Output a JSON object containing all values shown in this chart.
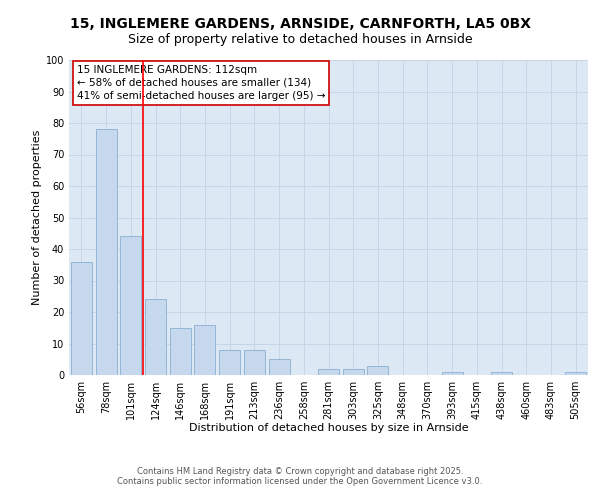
{
  "title_line1": "15, INGLEMERE GARDENS, ARNSIDE, CARNFORTH, LA5 0BX",
  "title_line2": "Size of property relative to detached houses in Arnside",
  "xlabel": "Distribution of detached houses by size in Arnside",
  "ylabel": "Number of detached properties",
  "categories": [
    "56sqm",
    "78sqm",
    "101sqm",
    "124sqm",
    "146sqm",
    "168sqm",
    "191sqm",
    "213sqm",
    "236sqm",
    "258sqm",
    "281sqm",
    "303sqm",
    "325sqm",
    "348sqm",
    "370sqm",
    "393sqm",
    "415sqm",
    "438sqm",
    "460sqm",
    "483sqm",
    "505sqm"
  ],
  "values": [
    36,
    78,
    44,
    24,
    15,
    16,
    8,
    8,
    5,
    0,
    2,
    2,
    3,
    0,
    0,
    1,
    0,
    1,
    0,
    0,
    1
  ],
  "bar_color": "#c5d8ed",
  "bar_edge_color": "#8ab0d0",
  "grid_color": "#c8d4e8",
  "background_color": "#dde8f5",
  "fig_background": "#ffffff",
  "red_line_x": 2.5,
  "annotation_text": "15 INGLEMERE GARDENS: 112sqm\n← 58% of detached houses are smaller (134)\n41% of semi-detached houses are larger (95) →",
  "annotation_box_color": "#ffffff",
  "annotation_box_edge": "#cc0000",
  "footer_line1": "Contains HM Land Registry data © Crown copyright and database right 2025.",
  "footer_line2": "Contains public sector information licensed under the Open Government Licence v3.0.",
  "ylim": [
    0,
    100
  ],
  "yticks": [
    0,
    10,
    20,
    30,
    40,
    50,
    60,
    70,
    80,
    90,
    100
  ],
  "title1_fontsize": 10,
  "title2_fontsize": 9,
  "tick_fontsize": 7,
  "axis_label_fontsize": 8,
  "annotation_fontsize": 7.5,
  "footer_fontsize": 6
}
